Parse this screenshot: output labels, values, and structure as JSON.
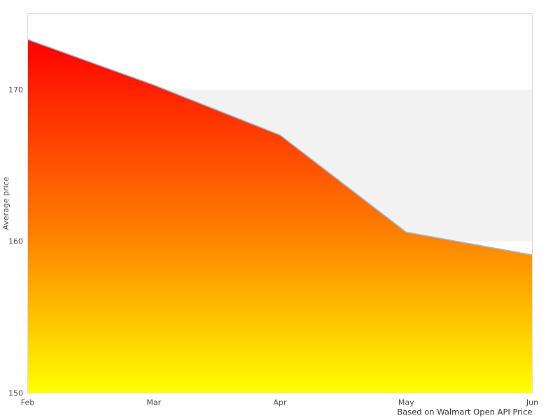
{
  "chart_data": {
    "type": "area",
    "title": "",
    "xlabel": "",
    "ylabel": "Average price",
    "caption": "Based on Walmart Open API Price",
    "x": [
      "Feb",
      "Mar",
      "Apr",
      "May",
      "Jun"
    ],
    "series": [
      {
        "name": "Average price",
        "values": [
          173.3,
          170.3,
          167.0,
          160.6,
          159.1
        ]
      }
    ],
    "ylim": [
      150,
      175
    ],
    "yticks": [
      "150",
      "160",
      "170"
    ],
    "ytick_values": [
      150,
      160,
      170
    ],
    "grid": "banded",
    "grid_bands": [
      {
        "from": 160,
        "to": 170,
        "color": "#f2f2f2"
      }
    ],
    "legend_position": "none",
    "colors": {
      "line": "#a2b9d2",
      "plot_border": "#dcdcdc",
      "band": "#f2f2f2",
      "tick_text": "#4d4d4d",
      "caption_text": "#333333",
      "area_gradient": [
        {
          "offset": 0.0,
          "color": "#ff0000"
        },
        {
          "offset": 0.55,
          "color": "#ff8000"
        },
        {
          "offset": 1.0,
          "color": "#ffff00"
        }
      ]
    }
  }
}
